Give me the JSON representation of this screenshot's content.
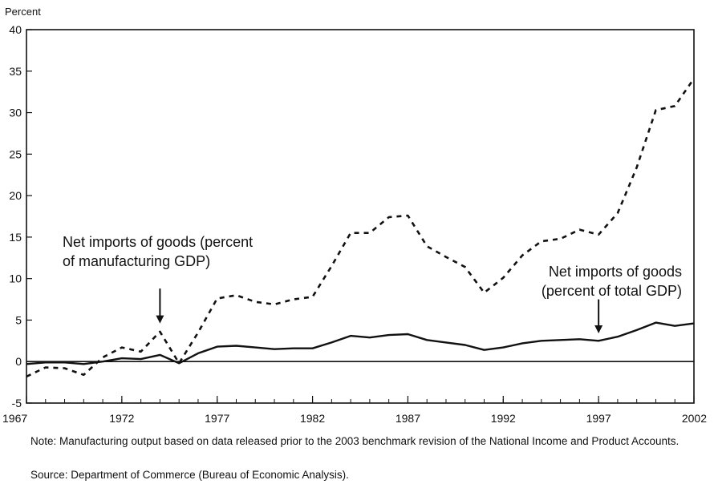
{
  "chart_data": {
    "type": "line",
    "ylabel": "Percent",
    "ylim": [
      -5,
      40
    ],
    "yticks": [
      -5,
      0,
      5,
      10,
      15,
      20,
      25,
      30,
      35,
      40
    ],
    "xlim": [
      1967,
      2002
    ],
    "xticks": [
      1967,
      1972,
      1977,
      1982,
      1987,
      1992,
      1997,
      2002
    ],
    "grid": false,
    "legend": "none",
    "x": [
      1967,
      1968,
      1969,
      1970,
      1971,
      1972,
      1973,
      1974,
      1975,
      1976,
      1977,
      1978,
      1979,
      1980,
      1981,
      1982,
      1983,
      1984,
      1985,
      1986,
      1987,
      1988,
      1989,
      1990,
      1991,
      1992,
      1993,
      1994,
      1995,
      1996,
      1997,
      1998,
      1999,
      2000,
      2001,
      2002
    ],
    "series": [
      {
        "style": "dashed",
        "values": [
          -1.8,
          -0.7,
          -0.8,
          -1.6,
          0.5,
          1.7,
          1.2,
          3.6,
          -0.2,
          3.5,
          7.6,
          8.0,
          7.2,
          6.9,
          7.5,
          7.8,
          11.5,
          15.5,
          15.5,
          17.4,
          17.6,
          13.9,
          12.6,
          11.4,
          8.3,
          10.1,
          12.8,
          14.5,
          14.8,
          15.9,
          15.3,
          17.9,
          23.4,
          30.3,
          30.8,
          34.1
        ]
      },
      {
        "style": "solid",
        "values": [
          -0.3,
          -0.1,
          -0.1,
          -0.3,
          0.0,
          0.4,
          0.3,
          0.8,
          -0.2,
          1.0,
          1.8,
          1.9,
          1.7,
          1.5,
          1.6,
          1.6,
          2.3,
          3.1,
          2.9,
          3.2,
          3.3,
          2.6,
          2.3,
          2.0,
          1.4,
          1.7,
          2.2,
          2.5,
          2.6,
          2.7,
          2.5,
          3.0,
          3.8,
          4.7,
          4.3,
          4.6
        ]
      }
    ],
    "annotations": [
      {
        "lines": [
          "Net imports of goods (percent",
          "of manufacturing GDP)"
        ],
        "arrow_year": 1974,
        "arrow_from": 8.8,
        "arrow_to": 4.6
      },
      {
        "lines": [
          "Net imports of goods",
          "(percent of total GDP)"
        ],
        "arrow_year": 1997,
        "arrow_from": 7.5,
        "arrow_to": 3.4
      }
    ],
    "zero_line": true
  },
  "notes": {
    "note": "Note: Manufacturing output based on data released prior to the 2003 benchmark revision of the National Income and Product Accounts.",
    "source": "Source: Department of Commerce (Bureau of Economic Analysis)."
  }
}
